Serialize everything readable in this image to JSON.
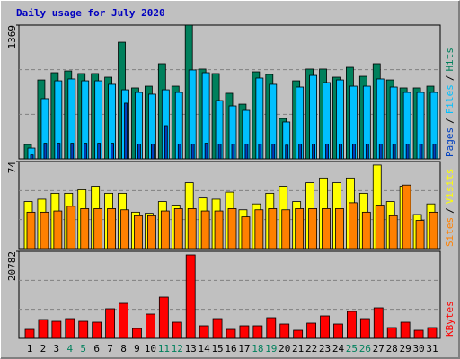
{
  "chart_data": [
    {
      "type": "bar",
      "title": "Daily usage for July 2020",
      "title_color": "#0000c0",
      "ylim": [
        0,
        1369
      ],
      "yticks": [
        1369
      ],
      "grid": true,
      "separator": "/",
      "series": [
        {
          "name": "Hits",
          "color": "#00805c",
          "values": [
            147,
            808,
            882,
            900,
            873,
            873,
            836,
            1194,
            726,
            744,
            974,
            744,
            1369,
            919,
            873,
            671,
            560,
            891,
            864,
            413,
            799,
            919,
            919,
            836,
            937,
            845,
            974,
            808,
            726,
            726,
            744
          ]
        },
        {
          "name": "Files",
          "color": "#00c0ff",
          "values": [
            110,
            616,
            799,
            818,
            799,
            799,
            763,
            707,
            680,
            662,
            707,
            680,
            910,
            882,
            597,
            542,
            496,
            827,
            763,
            377,
            735,
            854,
            781,
            808,
            744,
            744,
            818,
            735,
            680,
            680,
            680
          ]
        },
        {
          "name": "Pages",
          "color": "#0040c0",
          "values": [
            40,
            160,
            160,
            160,
            160,
            160,
            160,
            570,
            150,
            150,
            340,
            150,
            150,
            160,
            150,
            150,
            150,
            150,
            150,
            140,
            150,
            150,
            150,
            150,
            150,
            150,
            150,
            150,
            150,
            150,
            150
          ]
        }
      ]
    },
    {
      "type": "bar",
      "ylim": [
        0,
        74
      ],
      "yticks": [
        74
      ],
      "grid": true,
      "separator": "/",
      "series": [
        {
          "name": "Visits",
          "color": "#ffff00",
          "values": [
            40,
            42,
            47,
            47,
            50,
            53,
            47,
            47,
            31,
            30,
            40,
            37,
            56,
            43,
            42,
            48,
            33,
            38,
            47,
            53,
            40,
            56,
            60,
            56,
            60,
            47,
            71,
            40,
            53,
            29,
            38
          ]
        },
        {
          "name": "Sites",
          "color": "#ff8000",
          "values": [
            31,
            31,
            32,
            36,
            34,
            34,
            34,
            33,
            28,
            28,
            32,
            34,
            34,
            32,
            32,
            34,
            27,
            33,
            34,
            33,
            34,
            34,
            34,
            34,
            39,
            31,
            37,
            28,
            54,
            24,
            31
          ]
        }
      ]
    },
    {
      "type": "bar",
      "ylim": [
        0,
        20782
      ],
      "yticks": [
        20782
      ],
      "grid": true,
      "categories": [
        "1",
        "2",
        "3",
        "4",
        "5",
        "6",
        "7",
        "8",
        "9",
        "10",
        "11",
        "12",
        "13",
        "14",
        "15",
        "16",
        "17",
        "18",
        "19",
        "20",
        "21",
        "22",
        "23",
        "24",
        "25",
        "26",
        "27",
        "28",
        "29",
        "30",
        "31"
      ],
      "category_colors": [
        "#000000",
        "#000000",
        "#000000",
        "#00805c",
        "#00805c",
        "#000000",
        "#000000",
        "#000000",
        "#000000",
        "#000000",
        "#00805c",
        "#00805c",
        "#000000",
        "#000000",
        "#000000",
        "#000000",
        "#000000",
        "#00805c",
        "#00805c",
        "#000000",
        "#000000",
        "#000000",
        "#000000",
        "#000000",
        "#00805c",
        "#00805c",
        "#000000",
        "#000000",
        "#000000",
        "#000000",
        "#000000"
      ],
      "series": [
        {
          "name": "KBytes",
          "color": "#ff0000",
          "values": [
            2142,
            4500,
            4070,
            4713,
            4070,
            3856,
            7070,
            8355,
            2356,
            5785,
            9855,
            3856,
            19925,
            3000,
            4713,
            2142,
            3000,
            3000,
            4927,
            3428,
            1928,
            3642,
            5356,
            3428,
            6427,
            4713,
            7284,
            2571,
            3856,
            1928,
            2571
          ]
        }
      ]
    }
  ]
}
